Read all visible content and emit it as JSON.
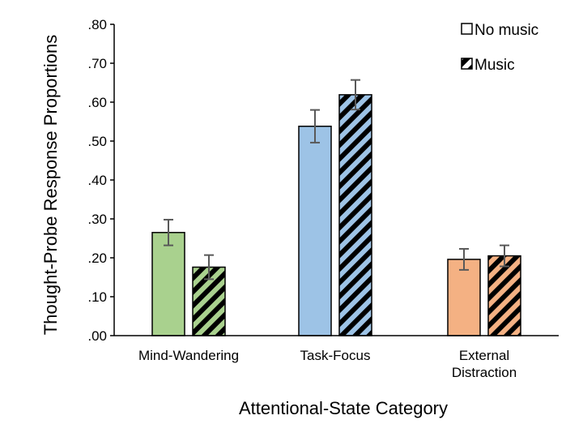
{
  "chart_data": {
    "type": "bar",
    "categories": [
      {
        "lines": [
          "Mind-Wandering"
        ]
      },
      {
        "lines": [
          "Task-Focus"
        ]
      },
      {
        "lines": [
          "External",
          "Distraction"
        ]
      }
    ],
    "series": [
      {
        "name": "No music",
        "pattern": "solid",
        "values": [
          0.265,
          0.538,
          0.196
        ],
        "error": [
          0.033,
          0.042,
          0.027
        ]
      },
      {
        "name": "Music",
        "pattern": "hatched",
        "values": [
          0.176,
          0.619,
          0.205
        ],
        "error": [
          0.031,
          0.038,
          0.027
        ]
      }
    ],
    "category_colors": [
      "#a9d18e",
      "#9dc3e6",
      "#f4b183"
    ],
    "yticks": [
      ".00",
      ".10",
      ".20",
      ".30",
      ".40",
      ".50",
      ".60",
      ".70",
      ".80"
    ],
    "ylim": [
      0,
      0.8
    ],
    "ylabel": "Thought-Probe Response Proportions",
    "xlabel": "Attentional-State Category",
    "legend_position": "top-right",
    "grid": false
  }
}
